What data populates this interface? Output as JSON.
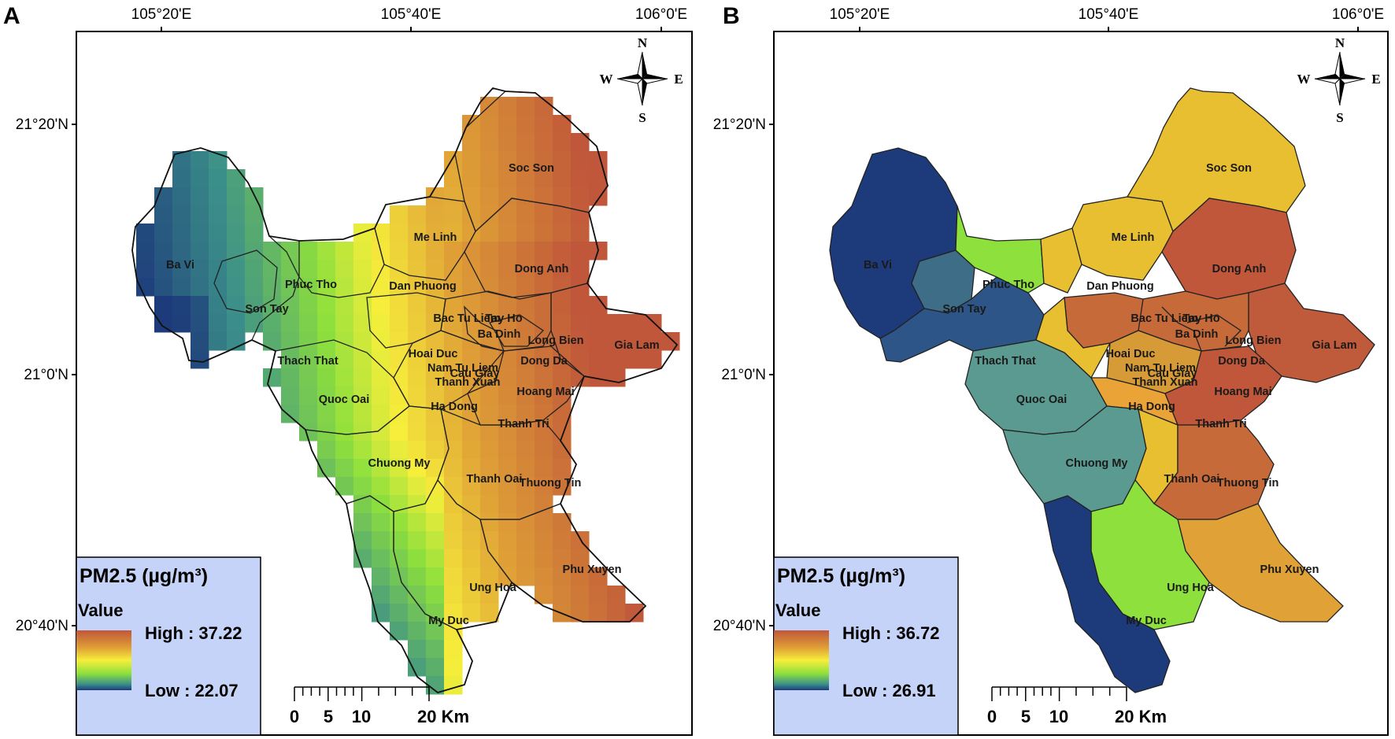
{
  "colors": {
    "high": "#c0573a",
    "mid_high": "#e0a236",
    "mid": "#f6ee3b",
    "mid_low": "#8ee03c",
    "low_mid": "#3b8f8a",
    "low": "#1d3a7a",
    "legend_bg": "#c5d3f8"
  },
  "panels": [
    {
      "letter": "A",
      "lon_labels": [
        "105°20'E",
        "105°40'E",
        "106°0'E"
      ],
      "lat_labels": [
        "21°20'N",
        "21°0'N",
        "20°40'N"
      ],
      "compass": {
        "n": "N",
        "s": "S",
        "e": "E",
        "w": "W"
      },
      "legend": {
        "title": "PM2.5 (µg/m³)",
        "subtitle": "Value",
        "high": "High : 37.22",
        "low": "Low : 22.07"
      },
      "scale": {
        "ticks": [
          "0",
          "5",
          "10",
          "20 Km"
        ]
      },
      "districts": [
        "Soc Son",
        "Me Linh",
        "Dong Anh",
        "Ba Vi",
        "Phuc Tho",
        "Dan Phuong",
        "Son Tay",
        "Bac Tu Liem",
        "Tay Ho",
        "Ba Dinh",
        "Long Bien",
        "Gia Lam",
        "Thach That",
        "Hoai Duc",
        "Cau Giay",
        "Dong Da",
        "Nam Tu Liem",
        "Thanh Xuan",
        "Hoang Mai",
        "Quoc Oai",
        "Ha Dong",
        "Thanh Tri",
        "Chuong My",
        "Thanh Oai",
        "Thuong Tin",
        "Phu Xuyen",
        "Ung Hoa",
        "My Duc"
      ]
    },
    {
      "letter": "B",
      "lon_labels": [
        "105°20'E",
        "105°40'E",
        "106°0'E"
      ],
      "lat_labels": [
        "21°20'N",
        "21°0'N",
        "20°40'N"
      ],
      "compass": {
        "n": "N",
        "s": "S",
        "e": "E",
        "w": "W"
      },
      "legend": {
        "title": "PM2.5 (µg/m³)",
        "subtitle": "Value",
        "high": "High : 36.72",
        "low": "Low : 26.91"
      },
      "scale": {
        "ticks": [
          "0",
          "5",
          "10",
          "20 Km"
        ]
      },
      "districts": [
        "Soc Son",
        "Me Linh",
        "Dong Anh",
        "Ba Vi",
        "Phuc Tho",
        "Dan Phuong",
        "Son Tay",
        "Bac Tu Liem",
        "Tay Ho",
        "Ba Dinh",
        "Long Bien",
        "Gia Lam",
        "Thach That",
        "Hoai Duc",
        "Cau Giay",
        "Dong Da",
        "Nam Tu Liem",
        "Thanh Xuan",
        "Hoang Mai",
        "Quoc Oai",
        "Ha Dong",
        "Thanh Tri",
        "Chuong My",
        "Thanh Oai",
        "Thuong Tin",
        "Phu Xuyen",
        "Ung Hoa",
        "My Duc"
      ]
    }
  ]
}
